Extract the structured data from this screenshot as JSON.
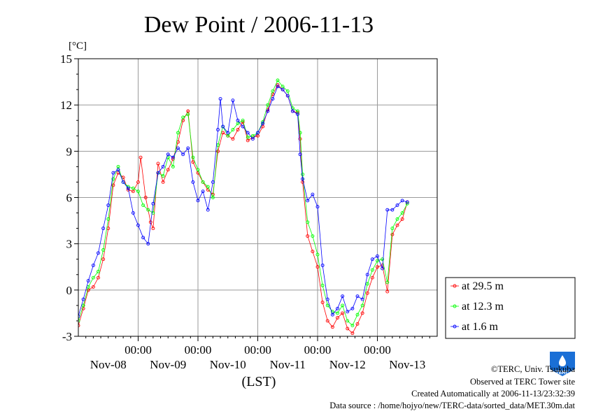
{
  "chart_data": {
    "type": "line",
    "title": "Dew Point / 2006-11-13",
    "ylabel": "[°C]",
    "xlabel": "(LST)",
    "ylim": [
      -3,
      15
    ],
    "yticks": [
      -3,
      0,
      3,
      6,
      9,
      12,
      15
    ],
    "xlim": [
      0,
      144
    ],
    "x_unit_note": "hours since 2006-11-08 00:00 LST",
    "xticks": [
      {
        "x": 24,
        "top": "00:00",
        "bottom": "Nov-09"
      },
      {
        "x": 48,
        "top": "00:00",
        "bottom": "Nov-10"
      },
      {
        "x": 72,
        "top": "00:00",
        "bottom": "Nov-11"
      },
      {
        "x": 96,
        "top": "00:00",
        "bottom": "Nov-12"
      },
      {
        "x": 120,
        "top": "00:00",
        "bottom": "Nov-13"
      }
    ],
    "x_day_labels": [
      {
        "x": 12,
        "label": "Nov-08"
      },
      {
        "x": 36,
        "label": "Nov-09"
      },
      {
        "x": 60,
        "label": "Nov-10"
      },
      {
        "x": 84,
        "label": "Nov-11"
      },
      {
        "x": 108,
        "label": "Nov-12"
      },
      {
        "x": 132,
        "label": "Nov-13"
      }
    ],
    "grid": true,
    "legend_position": "right",
    "series": [
      {
        "name": "at 29.5 m",
        "color": "#ff0000",
        "points": [
          [
            0,
            -2.3
          ],
          [
            2,
            -1.2
          ],
          [
            4,
            0.0
          ],
          [
            6,
            0.2
          ],
          [
            8,
            0.8
          ],
          [
            10,
            2.0
          ],
          [
            12,
            4.0
          ],
          [
            14,
            6.8
          ],
          [
            16,
            7.6
          ],
          [
            18,
            7.3
          ],
          [
            20,
            6.5
          ],
          [
            22,
            6.4
          ],
          [
            24,
            7.0
          ],
          [
            25,
            8.6
          ],
          [
            27,
            6.0
          ],
          [
            29,
            4.4
          ],
          [
            30,
            4.0
          ],
          [
            32,
            8.2
          ],
          [
            34,
            7.0
          ],
          [
            36,
            7.8
          ],
          [
            38,
            8.5
          ],
          [
            40,
            9.6
          ],
          [
            42,
            11.0
          ],
          [
            44,
            11.6
          ],
          [
            46,
            8.3
          ],
          [
            48,
            7.6
          ],
          [
            50,
            7.0
          ],
          [
            52,
            6.5
          ],
          [
            54,
            6.2
          ],
          [
            56,
            9.0
          ],
          [
            58,
            10.2
          ],
          [
            60,
            10.0
          ],
          [
            62,
            9.8
          ],
          [
            64,
            10.4
          ],
          [
            66,
            10.9
          ],
          [
            68,
            9.7
          ],
          [
            70,
            9.9
          ],
          [
            72,
            10.0
          ],
          [
            74,
            10.6
          ],
          [
            76,
            11.7
          ],
          [
            78,
            12.7
          ],
          [
            80,
            13.3
          ],
          [
            82,
            13.0
          ],
          [
            84,
            12.6
          ],
          [
            86,
            11.6
          ],
          [
            88,
            11.5
          ],
          [
            89,
            9.8
          ],
          [
            90,
            7.0
          ],
          [
            92,
            3.5
          ],
          [
            94,
            2.5
          ],
          [
            96,
            1.5
          ],
          [
            98,
            -0.8
          ],
          [
            100,
            -2.0
          ],
          [
            102,
            -2.4
          ],
          [
            104,
            -1.8
          ],
          [
            106,
            -1.5
          ],
          [
            108,
            -2.5
          ],
          [
            110,
            -2.8
          ],
          [
            112,
            -2.2
          ],
          [
            114,
            -1.5
          ],
          [
            116,
            -0.2
          ],
          [
            118,
            0.8
          ],
          [
            120,
            1.5
          ],
          [
            122,
            1.6
          ],
          [
            124,
            -0.1
          ],
          [
            126,
            3.6
          ],
          [
            128,
            4.2
          ],
          [
            130,
            4.6
          ],
          [
            132,
            5.7
          ]
        ]
      },
      {
        "name": "at 12.3 m",
        "color": "#00ff00",
        "points": [
          [
            0,
            -2.0
          ],
          [
            2,
            -1.0
          ],
          [
            4,
            0.2
          ],
          [
            6,
            0.8
          ],
          [
            8,
            1.2
          ],
          [
            10,
            2.6
          ],
          [
            12,
            4.6
          ],
          [
            14,
            7.2
          ],
          [
            16,
            8.0
          ],
          [
            18,
            7.0
          ],
          [
            20,
            6.7
          ],
          [
            22,
            6.6
          ],
          [
            24,
            6.4
          ],
          [
            26,
            5.5
          ],
          [
            28,
            5.2
          ],
          [
            30,
            5.0
          ],
          [
            32,
            7.6
          ],
          [
            34,
            7.4
          ],
          [
            36,
            8.6
          ],
          [
            38,
            8.0
          ],
          [
            40,
            10.2
          ],
          [
            42,
            11.2
          ],
          [
            44,
            11.4
          ],
          [
            46,
            8.6
          ],
          [
            48,
            7.8
          ],
          [
            50,
            7.0
          ],
          [
            52,
            6.7
          ],
          [
            54,
            6.0
          ],
          [
            56,
            9.4
          ],
          [
            58,
            10.6
          ],
          [
            60,
            10.0
          ],
          [
            62,
            10.4
          ],
          [
            64,
            10.8
          ],
          [
            66,
            11.0
          ],
          [
            68,
            9.9
          ],
          [
            70,
            10.0
          ],
          [
            72,
            10.2
          ],
          [
            74,
            10.9
          ],
          [
            76,
            12.0
          ],
          [
            78,
            12.9
          ],
          [
            80,
            13.6
          ],
          [
            82,
            13.2
          ],
          [
            84,
            12.9
          ],
          [
            86,
            11.8
          ],
          [
            88,
            11.6
          ],
          [
            89,
            10.2
          ],
          [
            90,
            7.5
          ],
          [
            92,
            4.4
          ],
          [
            94,
            3.5
          ],
          [
            96,
            2.3
          ],
          [
            98,
            0.3
          ],
          [
            100,
            -1.0
          ],
          [
            102,
            -1.4
          ],
          [
            104,
            -1.5
          ],
          [
            106,
            -1.0
          ],
          [
            108,
            -2.0
          ],
          [
            110,
            -2.3
          ],
          [
            112,
            -1.6
          ],
          [
            114,
            -1.0
          ],
          [
            116,
            0.4
          ],
          [
            118,
            1.3
          ],
          [
            120,
            1.9
          ],
          [
            122,
            2.0
          ],
          [
            124,
            0.5
          ],
          [
            126,
            4.0
          ],
          [
            128,
            4.6
          ],
          [
            130,
            5.0
          ],
          [
            132,
            5.6
          ]
        ]
      },
      {
        "name": "at 1.6 m",
        "color": "#0000ff",
        "points": [
          [
            0,
            -1.7
          ],
          [
            2,
            -0.6
          ],
          [
            4,
            0.6
          ],
          [
            6,
            1.6
          ],
          [
            8,
            2.4
          ],
          [
            10,
            4.0
          ],
          [
            12,
            5.5
          ],
          [
            14,
            7.6
          ],
          [
            16,
            7.8
          ],
          [
            18,
            7.0
          ],
          [
            20,
            6.6
          ],
          [
            22,
            5.0
          ],
          [
            24,
            4.2
          ],
          [
            26,
            3.4
          ],
          [
            28,
            3.0
          ],
          [
            30,
            5.6
          ],
          [
            32,
            7.6
          ],
          [
            34,
            8.0
          ],
          [
            36,
            8.8
          ],
          [
            38,
            8.6
          ],
          [
            40,
            9.2
          ],
          [
            42,
            8.8
          ],
          [
            44,
            9.2
          ],
          [
            46,
            7.0
          ],
          [
            48,
            5.8
          ],
          [
            50,
            6.4
          ],
          [
            52,
            5.2
          ],
          [
            54,
            7.0
          ],
          [
            56,
            10.4
          ],
          [
            57,
            12.4
          ],
          [
            58,
            10.6
          ],
          [
            60,
            10.2
          ],
          [
            62,
            12.3
          ],
          [
            64,
            11.0
          ],
          [
            66,
            10.6
          ],
          [
            68,
            10.2
          ],
          [
            70,
            9.8
          ],
          [
            72,
            10.2
          ],
          [
            74,
            10.8
          ],
          [
            76,
            11.6
          ],
          [
            78,
            12.4
          ],
          [
            80,
            13.2
          ],
          [
            82,
            13.0
          ],
          [
            84,
            12.6
          ],
          [
            86,
            11.6
          ],
          [
            88,
            11.4
          ],
          [
            89,
            8.8
          ],
          [
            90,
            7.2
          ],
          [
            92,
            5.8
          ],
          [
            94,
            6.2
          ],
          [
            96,
            5.4
          ],
          [
            98,
            1.6
          ],
          [
            100,
            -0.6
          ],
          [
            102,
            -1.6
          ],
          [
            104,
            -1.2
          ],
          [
            106,
            -0.4
          ],
          [
            108,
            -1.4
          ],
          [
            110,
            -1.2
          ],
          [
            112,
            -0.4
          ],
          [
            114,
            -0.6
          ],
          [
            116,
            1.0
          ],
          [
            118,
            2.0
          ],
          [
            120,
            2.2
          ],
          [
            122,
            1.4
          ],
          [
            124,
            5.2
          ],
          [
            126,
            5.2
          ],
          [
            128,
            5.5
          ],
          [
            130,
            5.8
          ],
          [
            132,
            5.7
          ]
        ]
      }
    ]
  },
  "credits": {
    "copyright": "©TERC, Univ. Tsukuba",
    "site": "Observed at TERC Tower site",
    "created": "Created Automatically at 2006-11-13/23:32:39",
    "source": "Data source : /home/hojyo/new/TERC-data/sorted_data/MET.30m.dat"
  },
  "logo": {
    "text": "TERC",
    "color": "#1a6fd6"
  }
}
